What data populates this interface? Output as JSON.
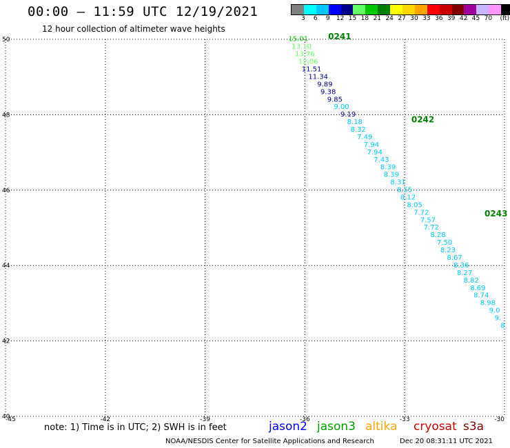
{
  "header": {
    "title": "00:00 – 11:59 UTC 12/19/2021",
    "subtitle": "12 hour collection of altimeter wave heights"
  },
  "colorbar": {
    "colors": [
      "#808080",
      "#00ffff",
      "#00c8ff",
      "#0000ff",
      "#00008b",
      "#64ff64",
      "#00c800",
      "#008000",
      "#ffff00",
      "#ffd700",
      "#ffa500",
      "#ff0000",
      "#c80000",
      "#800000",
      "#a000a0",
      "#c8b4ff",
      "#ff96ff",
      "#000000"
    ],
    "labels": [
      "3",
      "6",
      "9",
      "12",
      "15",
      "18",
      "21",
      "24",
      "27",
      "30",
      "33",
      "36",
      "39",
      "42",
      "45",
      "70",
      "(ft)"
    ]
  },
  "chart_data": {
    "type": "scatter",
    "title": "00:00 – 11:59 UTC 12/19/2021",
    "xlabel": "",
    "ylabel": "",
    "xlim": [
      -45,
      -30
    ],
    "ylim": [
      40,
      50
    ],
    "x_ticks": [
      "-45",
      "-42",
      "-39",
      "-36",
      "-33",
      "-30"
    ],
    "y_ticks": [
      "50",
      "48",
      "46",
      "44",
      "42",
      "40"
    ],
    "grid": true,
    "pass_labels": [
      {
        "text": "0241",
        "lon": -35.3,
        "lat": 50.0
      },
      {
        "text": "0242",
        "lon": -32.8,
        "lat": 47.8
      },
      {
        "text": "0243",
        "lon": -30.6,
        "lat": 45.3
      }
    ],
    "series": [
      {
        "name": "jason3",
        "points": [
          {
            "lon": -36.2,
            "lat": 49.95,
            "swh": "15.01",
            "color": "#00c800"
          },
          {
            "lon": -36.1,
            "lat": 49.75,
            "swh": "13.10",
            "color": "#64ff64"
          },
          {
            "lon": -36.0,
            "lat": 49.55,
            "swh": "13.76",
            "color": "#64ff64"
          },
          {
            "lon": -35.9,
            "lat": 49.35,
            "swh": "12.06",
            "color": "#64ff64"
          },
          {
            "lon": -35.8,
            "lat": 49.15,
            "swh": "11.51",
            "color": "#00008b"
          },
          {
            "lon": -35.6,
            "lat": 48.95,
            "swh": "11.34",
            "color": "#00008b"
          },
          {
            "lon": -35.4,
            "lat": 48.75,
            "swh": "9.89",
            "color": "#00008b"
          },
          {
            "lon": -35.3,
            "lat": 48.55,
            "swh": "9.38",
            "color": "#00008b"
          },
          {
            "lon": -35.1,
            "lat": 48.35,
            "swh": "9.85",
            "color": "#00008b"
          },
          {
            "lon": -34.9,
            "lat": 48.15,
            "swh": "9.00",
            "color": "#00c8ff"
          },
          {
            "lon": -34.7,
            "lat": 47.95,
            "swh": "9.19",
            "color": "#00008b"
          },
          {
            "lon": -34.5,
            "lat": 47.75,
            "swh": "8.18",
            "color": "#00c8ff"
          },
          {
            "lon": -34.4,
            "lat": 47.55,
            "swh": "8.32",
            "color": "#00c8ff"
          },
          {
            "lon": -34.2,
            "lat": 47.35,
            "swh": "7.49",
            "color": "#00c8ff"
          },
          {
            "lon": -34.0,
            "lat": 47.15,
            "swh": "7.94",
            "color": "#00c8ff"
          },
          {
            "lon": -33.9,
            "lat": 46.95,
            "swh": "7.94",
            "color": "#00c8ff"
          },
          {
            "lon": -33.7,
            "lat": 46.75,
            "swh": "7.43",
            "color": "#00c8ff"
          },
          {
            "lon": -33.5,
            "lat": 46.55,
            "swh": "8.39",
            "color": "#00c8ff"
          },
          {
            "lon": -33.4,
            "lat": 46.35,
            "swh": "8.39",
            "color": "#00c8ff"
          },
          {
            "lon": -33.2,
            "lat": 46.15,
            "swh": "8.31",
            "color": "#00c8ff"
          },
          {
            "lon": -33.0,
            "lat": 45.95,
            "swh": "8.55",
            "color": "#00c8ff"
          },
          {
            "lon": -32.9,
            "lat": 45.75,
            "swh": "8.12",
            "color": "#00c8ff"
          },
          {
            "lon": -32.7,
            "lat": 45.55,
            "swh": "8.05",
            "color": "#00c8ff"
          },
          {
            "lon": -32.5,
            "lat": 45.35,
            "swh": "7.72",
            "color": "#00c8ff"
          },
          {
            "lon": -32.3,
            "lat": 45.15,
            "swh": "7.57",
            "color": "#00c8ff"
          },
          {
            "lon": -32.2,
            "lat": 44.95,
            "swh": "7.72",
            "color": "#00c8ff"
          },
          {
            "lon": -32.0,
            "lat": 44.75,
            "swh": "8.28",
            "color": "#00c8ff"
          },
          {
            "lon": -31.8,
            "lat": 44.55,
            "swh": "7.50",
            "color": "#00c8ff"
          },
          {
            "lon": -31.7,
            "lat": 44.35,
            "swh": "8.23",
            "color": "#00c8ff"
          },
          {
            "lon": -31.5,
            "lat": 44.15,
            "swh": "8.67",
            "color": "#00c8ff"
          },
          {
            "lon": -31.3,
            "lat": 43.95,
            "swh": "8.36",
            "color": "#00c8ff"
          },
          {
            "lon": -31.2,
            "lat": 43.75,
            "swh": "8.27",
            "color": "#00c8ff"
          },
          {
            "lon": -31.0,
            "lat": 43.55,
            "swh": "8.82",
            "color": "#00c8ff"
          },
          {
            "lon": -30.8,
            "lat": 43.35,
            "swh": "8.69",
            "color": "#00c8ff"
          },
          {
            "lon": -30.7,
            "lat": 43.15,
            "swh": "8.74",
            "color": "#00c8ff"
          },
          {
            "lon": -30.5,
            "lat": 42.95,
            "swh": "8.98",
            "color": "#00c8ff"
          },
          {
            "lon": -30.3,
            "lat": 42.75,
            "swh": "9.0",
            "color": "#00c8ff"
          },
          {
            "lon": -30.2,
            "lat": 42.55,
            "swh": "9.",
            "color": "#00c8ff"
          },
          {
            "lon": -30.05,
            "lat": 42.35,
            "swh": "8",
            "color": "#00c8ff"
          }
        ]
      }
    ]
  },
  "footer": {
    "note": "note: 1) Time is in UTC; 2) SWH is in feet",
    "satellites": [
      {
        "name": "jason2",
        "color": "#0000ff"
      },
      {
        "name": "jason3",
        "color": "#00a000"
      },
      {
        "name": "altika",
        "color": "#ffa500"
      },
      {
        "name": "cryosat",
        "color": "#c80000"
      },
      {
        "name": "s3a",
        "color": "#800000"
      }
    ],
    "credit": "NOAA/NESDIS Center for Satellite Applications and Research",
    "timestamp": "Dec 20 08:31:11 UTC 2021"
  }
}
